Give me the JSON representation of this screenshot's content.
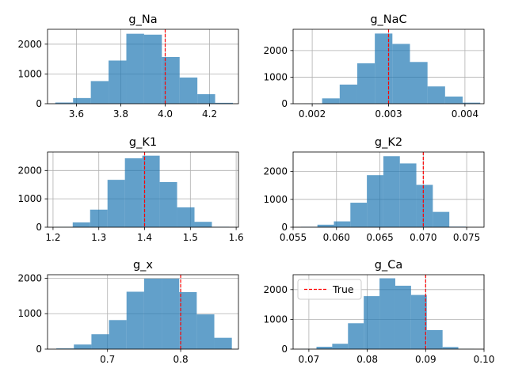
{
  "figure": {
    "bar_color": "#1f77b4",
    "bar_opacity": 0.7,
    "true_line_color": "#ff0000",
    "grid_color": "#b0b0b0",
    "legend_label": "True"
  },
  "chart_data": [
    {
      "type": "bar",
      "title": "g_Na",
      "xlim": [
        3.47,
        4.33
      ],
      "ylim": [
        0,
        2500
      ],
      "xticks": [
        3.6,
        3.8,
        4.0,
        4.2
      ],
      "xtick_labels": [
        "3.6",
        "3.8",
        "4.0",
        "4.2"
      ],
      "yticks": [
        0,
        1000,
        2000
      ],
      "ytick_labels": [
        "0",
        "1000",
        "2000"
      ],
      "bin_edges": [
        3.505,
        3.585,
        3.665,
        3.745,
        3.825,
        3.905,
        3.985,
        4.065,
        4.145,
        4.225,
        4.305
      ],
      "counts": [
        40,
        190,
        760,
        1450,
        2350,
        2320,
        1570,
        880,
        320,
        30
      ],
      "true_value": 4.0,
      "grid": true,
      "legend": false
    },
    {
      "type": "bar",
      "title": "g_NaC",
      "xlim": [
        0.00175,
        0.00425
      ],
      "ylim": [
        0,
        2800
      ],
      "xticks": [
        0.002,
        0.003,
        0.004
      ],
      "xtick_labels": [
        "0.002",
        "0.003",
        "0.004"
      ],
      "yticks": [
        0,
        1000,
        2000
      ],
      "ytick_labels": [
        "0",
        "1000",
        "2000"
      ],
      "bin_edges": [
        0.0019,
        0.00213,
        0.00236,
        0.00259,
        0.00282,
        0.00305,
        0.00328,
        0.00351,
        0.00374,
        0.00397,
        0.0042
      ],
      "counts": [
        5,
        200,
        720,
        1520,
        2640,
        2250,
        1570,
        650,
        270,
        40
      ],
      "true_value": 0.003,
      "grid": true,
      "legend": false
    },
    {
      "type": "bar",
      "title": "g_K1",
      "xlim": [
        1.188,
        1.605
      ],
      "ylim": [
        0,
        2650
      ],
      "xticks": [
        1.2,
        1.3,
        1.4,
        1.5,
        1.6
      ],
      "xtick_labels": [
        "1.2",
        "1.3",
        "1.4",
        "1.5",
        "1.6"
      ],
      "yticks": [
        0,
        1000,
        2000
      ],
      "ytick_labels": [
        "0",
        "1000",
        "2000"
      ],
      "bin_edges": [
        1.205,
        1.243,
        1.281,
        1.319,
        1.357,
        1.395,
        1.433,
        1.471,
        1.509,
        1.547,
        1.585
      ],
      "counts": [
        10,
        170,
        620,
        1670,
        2430,
        2520,
        1590,
        700,
        190,
        15
      ],
      "true_value": 1.4,
      "grid": true,
      "legend": false
    },
    {
      "type": "bar",
      "title": "g_K2",
      "xlim": [
        0.055,
        0.077
      ],
      "ylim": [
        0,
        2700
      ],
      "xticks": [
        0.055,
        0.06,
        0.065,
        0.07,
        0.075
      ],
      "xtick_labels": [
        "0.055",
        "0.060",
        "0.065",
        "0.070",
        "0.075"
      ],
      "yticks": [
        0,
        1000,
        2000
      ],
      "ytick_labels": [
        "0",
        "1000",
        "2000"
      ],
      "bin_edges": [
        0.0559,
        0.0578,
        0.0597,
        0.0616,
        0.0635,
        0.0654,
        0.0673,
        0.0692,
        0.0711,
        0.073,
        0.0749
      ],
      "counts": [
        15,
        90,
        210,
        880,
        1870,
        2550,
        2290,
        1520,
        550,
        20
      ],
      "true_value": 0.07,
      "grid": true,
      "legend": false
    },
    {
      "type": "bar",
      "title": "g_x",
      "xlim": [
        0.618,
        0.879
      ],
      "ylim": [
        0,
        2100
      ],
      "xticks": [
        0.7,
        0.8
      ],
      "xtick_labels": [
        "0.7",
        "0.8"
      ],
      "yticks": [
        0,
        1000,
        2000
      ],
      "ytick_labels": [
        "0",
        "1000",
        "2000"
      ],
      "bin_edges": [
        0.63,
        0.654,
        0.678,
        0.702,
        0.726,
        0.75,
        0.774,
        0.798,
        0.822,
        0.846,
        0.87
      ],
      "counts": [
        20,
        130,
        420,
        820,
        1620,
        1990,
        1990,
        1610,
        980,
        320
      ],
      "true_value": 0.8,
      "grid": true,
      "legend": false
    },
    {
      "type": "bar",
      "title": "g_Ca",
      "xlim": [
        0.0673,
        0.1
      ],
      "ylim": [
        0,
        2500
      ],
      "xticks": [
        0.07,
        0.08,
        0.09,
        0.1
      ],
      "xtick_labels": [
        "0.07",
        "0.08",
        "0.09",
        "0.10"
      ],
      "yticks": [
        0,
        1000,
        2000
      ],
      "ytick_labels": [
        "0",
        "1000",
        "2000"
      ],
      "bin_edges": [
        0.0686,
        0.0713,
        0.074,
        0.0767,
        0.0794,
        0.0821,
        0.0848,
        0.0875,
        0.0902,
        0.0929,
        0.0956,
        0.0983
      ],
      "counts": [
        5,
        80,
        180,
        870,
        1780,
        2380,
        2130,
        1820,
        640,
        70,
        5
      ],
      "true_value": 0.09,
      "grid": true,
      "legend": true,
      "legend_position": "upper-left"
    }
  ]
}
